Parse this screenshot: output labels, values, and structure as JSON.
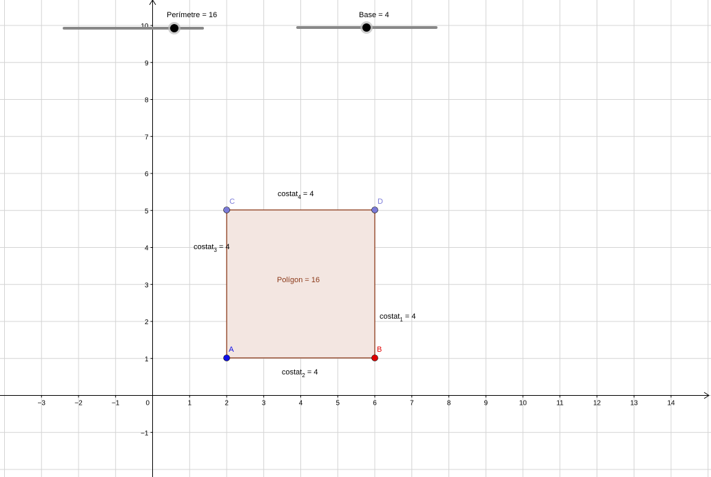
{
  "sliders": [
    {
      "id": "perimetre",
      "label": "Perímetre = 16",
      "value": 16
    },
    {
      "id": "base",
      "label": "Base = 4",
      "value": 4
    }
  ],
  "axes": {
    "x_ticks": [
      "−3",
      "−2",
      "−1",
      "0",
      "1",
      "2",
      "3",
      "4",
      "5",
      "6",
      "7",
      "8",
      "9",
      "10",
      "11",
      "12",
      "13",
      "14"
    ],
    "y_ticks": [
      "−1",
      "1",
      "2",
      "3",
      "4",
      "5",
      "6",
      "7",
      "8",
      "9",
      "10"
    ]
  },
  "points": [
    {
      "id": "A",
      "label": "A",
      "x": 2,
      "y": 1,
      "color": "#1010e6"
    },
    {
      "id": "B",
      "label": "B",
      "x": 6,
      "y": 1,
      "color": "#e00000"
    },
    {
      "id": "C",
      "label": "C",
      "x": 2,
      "y": 5,
      "color": "#7b7bd8"
    },
    {
      "id": "D",
      "label": "D",
      "x": 6,
      "y": 5,
      "color": "#7b7bd8"
    }
  ],
  "segments": [
    {
      "id": "costat1",
      "name": "costat",
      "sub": "1",
      "rest": " = 4"
    },
    {
      "id": "costat2",
      "name": "costat",
      "sub": "2",
      "rest": " = 4"
    },
    {
      "id": "costat3",
      "name": "costat",
      "sub": "3",
      "rest": " = 4"
    },
    {
      "id": "costat4",
      "name": "costat",
      "sub": "4",
      "rest": " = 4"
    }
  ],
  "polygon": {
    "label": "Polígon = 16",
    "color": "#8b3a1a"
  }
}
